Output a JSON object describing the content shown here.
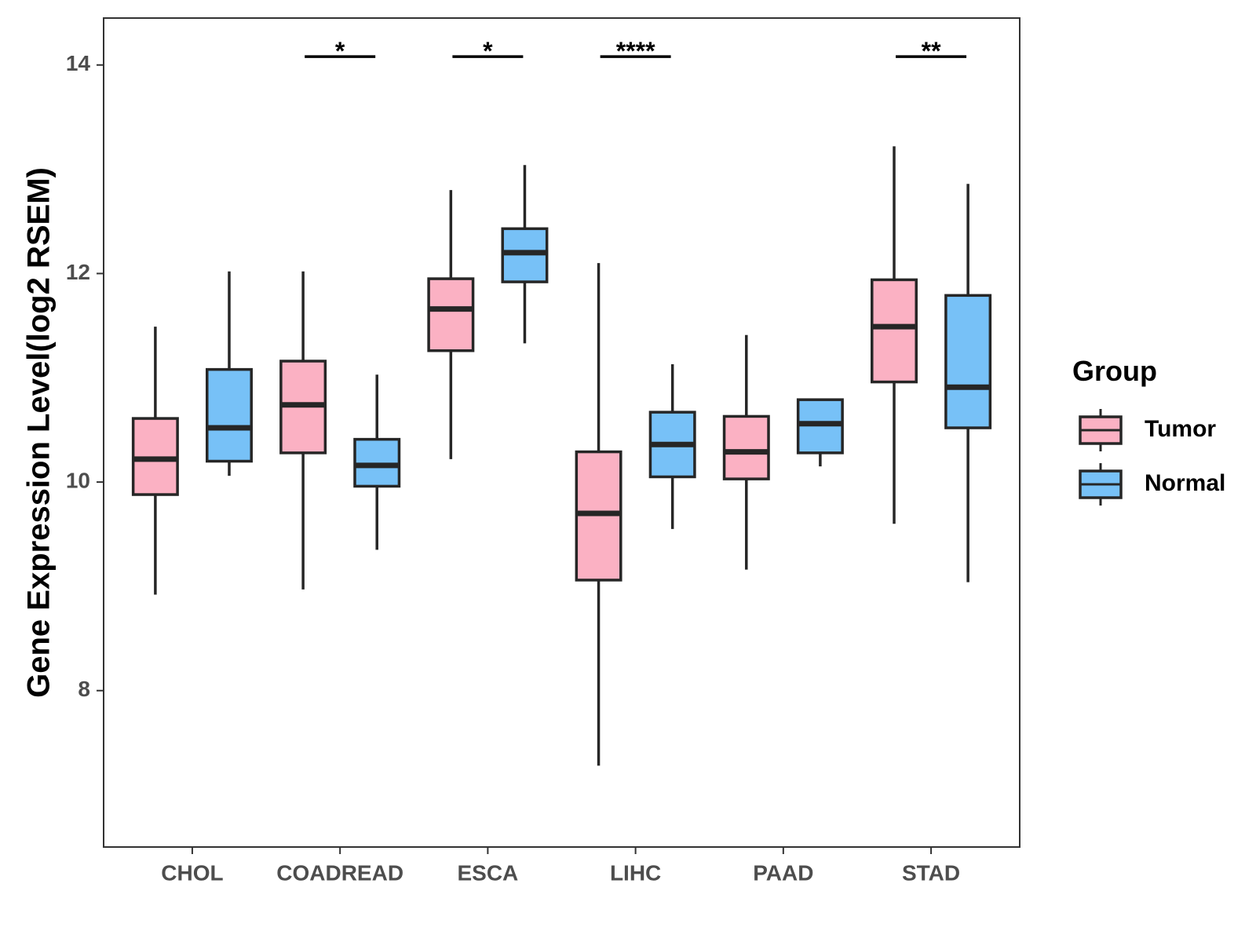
{
  "chart_data": {
    "type": "box",
    "ylabel": "Gene Expression Level(log2 RSEM)",
    "xlabel": "",
    "ylim": [
      6.5,
      14.45
    ],
    "yticks": [
      8,
      10,
      12,
      14
    ],
    "grid": false,
    "categories": [
      "CHOL",
      "COADREAD",
      "ESCA",
      "LIHC",
      "PAAD",
      "STAD"
    ],
    "legend": {
      "title": "Group",
      "position": "right",
      "entries": [
        "Tumor",
        "Normal"
      ]
    },
    "colors": {
      "Tumor": "#FBB1C3",
      "Normal": "#77C1F7",
      "stroke": "#262626"
    },
    "series": [
      {
        "name": "Tumor",
        "boxes": [
          {
            "category": "CHOL",
            "whisker_low": 8.92,
            "q1": 9.88,
            "median": 10.22,
            "q3": 10.61,
            "whisker_high": 11.49
          },
          {
            "category": "COADREAD",
            "whisker_low": 8.97,
            "q1": 10.28,
            "median": 10.74,
            "q3": 11.16,
            "whisker_high": 12.02
          },
          {
            "category": "ESCA",
            "whisker_low": 10.22,
            "q1": 11.26,
            "median": 11.66,
            "q3": 11.95,
            "whisker_high": 12.8
          },
          {
            "category": "LIHC",
            "whisker_low": 7.28,
            "q1": 9.06,
            "median": 9.7,
            "q3": 10.29,
            "whisker_high": 12.1
          },
          {
            "category": "PAAD",
            "whisker_low": 9.16,
            "q1": 10.03,
            "median": 10.29,
            "q3": 10.63,
            "whisker_high": 11.41
          },
          {
            "category": "STAD",
            "whisker_low": 9.6,
            "q1": 10.96,
            "median": 11.49,
            "q3": 11.94,
            "whisker_high": 13.22
          }
        ]
      },
      {
        "name": "Normal",
        "boxes": [
          {
            "category": "CHOL",
            "whisker_low": 10.06,
            "q1": 10.2,
            "median": 10.52,
            "q3": 11.08,
            "whisker_high": 12.02
          },
          {
            "category": "COADREAD",
            "whisker_low": 9.35,
            "q1": 9.96,
            "median": 10.16,
            "q3": 10.41,
            "whisker_high": 11.03
          },
          {
            "category": "ESCA",
            "whisker_low": 11.33,
            "q1": 11.92,
            "median": 12.2,
            "q3": 12.43,
            "whisker_high": 13.04
          },
          {
            "category": "LIHC",
            "whisker_low": 9.55,
            "q1": 10.05,
            "median": 10.36,
            "q3": 10.67,
            "whisker_high": 11.13
          },
          {
            "category": "PAAD",
            "whisker_low": 10.15,
            "q1": 10.28,
            "median": 10.56,
            "q3": 10.79,
            "whisker_high": 10.79
          },
          {
            "category": "STAD",
            "whisker_low": 9.04,
            "q1": 10.52,
            "median": 10.91,
            "q3": 11.79,
            "whisker_high": 12.86
          }
        ]
      }
    ],
    "annotations": [
      {
        "category": "CHOL",
        "label": ""
      },
      {
        "category": "COADREAD",
        "label": "*"
      },
      {
        "category": "ESCA",
        "label": "*"
      },
      {
        "category": "LIHC",
        "label": "****"
      },
      {
        "category": "PAAD",
        "label": ""
      },
      {
        "category": "STAD",
        "label": "**"
      }
    ],
    "annotation_y": 14.08
  }
}
